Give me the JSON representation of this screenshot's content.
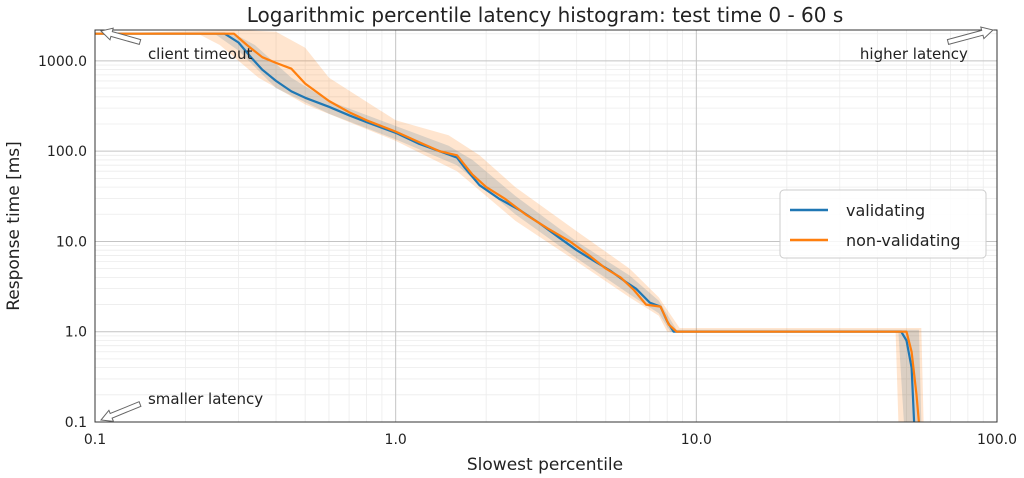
{
  "chart_data": {
    "type": "line",
    "title": "Logarithmic percentile latency histogram: test time 0 - 60 s",
    "xlabel": "Slowest percentile",
    "ylabel": "Response time [ms]",
    "x_scale": "log",
    "y_scale": "log",
    "xlim": [
      0.1,
      100
    ],
    "ylim": [
      0.1,
      2200
    ],
    "x_ticks": [
      0.1,
      1,
      10,
      100
    ],
    "x_tick_labels": [
      "0.1",
      "1.0",
      "10.0",
      "100.0"
    ],
    "y_ticks": [
      0.1,
      1,
      10,
      100,
      1000
    ],
    "y_tick_labels": [
      "0.1",
      "1.0",
      "10.0",
      "100.0",
      "1000.0"
    ],
    "grid": true,
    "legend_position": "center-right",
    "annotations": [
      {
        "text": "client timeout",
        "x": 0.15,
        "y": 1200
      },
      {
        "text": "higher latency",
        "x": 35,
        "y": 1200
      },
      {
        "text": "smaller latency",
        "x": 0.15,
        "y": 0.18
      }
    ],
    "series": [
      {
        "name": "validating",
        "color": "#1f77b4",
        "points": [
          [
            0.1,
            2000
          ],
          [
            0.27,
            2000
          ],
          [
            0.3,
            1600
          ],
          [
            0.33,
            1100
          ],
          [
            0.36,
            800
          ],
          [
            0.4,
            600
          ],
          [
            0.45,
            460
          ],
          [
            0.5,
            390
          ],
          [
            0.6,
            310
          ],
          [
            0.7,
            250
          ],
          [
            0.8,
            210
          ],
          [
            1.0,
            160
          ],
          [
            1.2,
            120
          ],
          [
            1.4,
            100
          ],
          [
            1.6,
            85
          ],
          [
            1.7,
            65
          ],
          [
            1.9,
            42
          ],
          [
            2.2,
            30
          ],
          [
            2.6,
            22
          ],
          [
            3.0,
            16
          ],
          [
            3.5,
            11
          ],
          [
            4.0,
            8
          ],
          [
            4.6,
            6
          ],
          [
            5.2,
            4.7
          ],
          [
            5.8,
            3.6
          ],
          [
            6.3,
            3
          ],
          [
            7.0,
            2.1
          ],
          [
            7.6,
            1.9
          ],
          [
            8.0,
            1.3
          ],
          [
            8.4,
            1.0
          ],
          [
            48,
            1.0
          ],
          [
            50,
            0.8
          ],
          [
            52,
            0.4
          ],
          [
            53,
            0.1
          ]
        ],
        "band_low": [
          [
            0.1,
            2000
          ],
          [
            0.25,
            2000
          ],
          [
            0.3,
            1300
          ],
          [
            0.4,
            500
          ],
          [
            0.6,
            260
          ],
          [
            1.0,
            135
          ],
          [
            1.6,
            70
          ],
          [
            2.5,
            20
          ],
          [
            4.0,
            6.5
          ],
          [
            6.0,
            2.6
          ],
          [
            7.5,
            1.6
          ],
          [
            8.2,
            1.0
          ],
          [
            47,
            1.0
          ],
          [
            49,
            0.1
          ]
        ],
        "band_high": [
          [
            0.1,
            2000
          ],
          [
            0.29,
            2000
          ],
          [
            0.34,
            1500
          ],
          [
            0.45,
            650
          ],
          [
            0.6,
            360
          ],
          [
            1.0,
            190
          ],
          [
            1.5,
            115
          ],
          [
            1.8,
            80
          ],
          [
            2.5,
            32
          ],
          [
            4.0,
            10
          ],
          [
            6.0,
            4.2
          ],
          [
            7.5,
            2.2
          ],
          [
            8.6,
            1.05
          ],
          [
            55,
            1.05
          ],
          [
            56,
            0.1
          ]
        ]
      },
      {
        "name": "non-validating",
        "color": "#ff7f0e",
        "points": [
          [
            0.1,
            2000
          ],
          [
            0.29,
            2000
          ],
          [
            0.32,
            1500
          ],
          [
            0.36,
            1100
          ],
          [
            0.4,
            950
          ],
          [
            0.45,
            820
          ],
          [
            0.5,
            560
          ],
          [
            0.6,
            360
          ],
          [
            0.7,
            270
          ],
          [
            0.8,
            220
          ],
          [
            1.0,
            165
          ],
          [
            1.2,
            125
          ],
          [
            1.4,
            100
          ],
          [
            1.6,
            90
          ],
          [
            1.8,
            55
          ],
          [
            2.0,
            40
          ],
          [
            2.3,
            30
          ],
          [
            2.7,
            20
          ],
          [
            3.2,
            14
          ],
          [
            3.8,
            10
          ],
          [
            4.4,
            7
          ],
          [
            5.0,
            5
          ],
          [
            5.6,
            4
          ],
          [
            6.2,
            2.9
          ],
          [
            6.8,
            2
          ],
          [
            7.6,
            1.9
          ],
          [
            8.1,
            1.2
          ],
          [
            8.6,
            1.0
          ],
          [
            50,
            1.0
          ],
          [
            52,
            0.6
          ],
          [
            54,
            0.2
          ],
          [
            55,
            0.1
          ]
        ],
        "band_low": [
          [
            0.1,
            2000
          ],
          [
            0.22,
            2000
          ],
          [
            0.26,
            1500
          ],
          [
            0.35,
            650
          ],
          [
            0.5,
            330
          ],
          [
            1.0,
            130
          ],
          [
            1.6,
            60
          ],
          [
            2.5,
            17
          ],
          [
            4.0,
            6
          ],
          [
            6.0,
            2.4
          ],
          [
            7.5,
            1.5
          ],
          [
            8.0,
            1.0
          ],
          [
            46,
            1.0
          ],
          [
            47,
            0.1
          ]
        ],
        "band_high": [
          [
            0.1,
            2000
          ],
          [
            0.3,
            2200
          ],
          [
            0.4,
            2100
          ],
          [
            0.5,
            1400
          ],
          [
            0.6,
            650
          ],
          [
            1.0,
            220
          ],
          [
            1.5,
            150
          ],
          [
            1.9,
            90
          ],
          [
            2.5,
            40
          ],
          [
            4.0,
            13
          ],
          [
            6.0,
            5
          ],
          [
            7.5,
            2.4
          ],
          [
            8.8,
            1.1
          ],
          [
            56,
            1.1
          ],
          [
            57,
            0.1
          ]
        ]
      }
    ]
  }
}
